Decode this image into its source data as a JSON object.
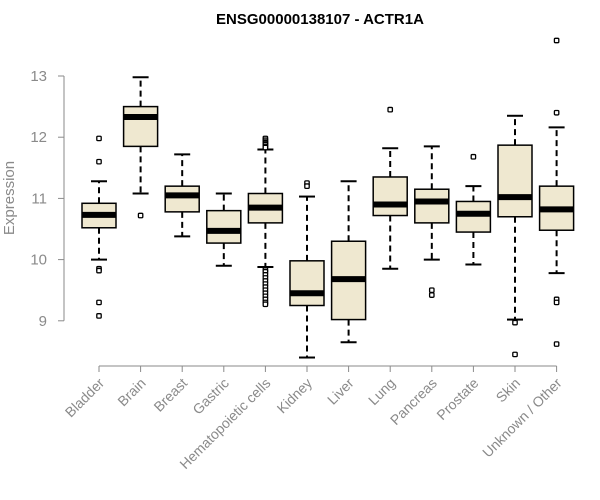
{
  "chart_data": {
    "type": "box",
    "title": "ENSG00000138107 - ACTR1A",
    "xlabel": "",
    "ylabel": "Expression",
    "ylim": [
      8.35,
      13.6
    ],
    "yticks": [
      9,
      10,
      11,
      12,
      13
    ],
    "grid": false,
    "box_fill": "#efe8d0",
    "median_color": "#000000",
    "categories": [
      "Bladder",
      "Brain",
      "Breast",
      "Gastric",
      "Hematopoietic cells",
      "Kidney",
      "Liver",
      "Lung",
      "Pancreas",
      "Prostate",
      "Skin",
      "Unknown / Other"
    ],
    "boxes": [
      {
        "label": "Bladder",
        "whisker_low": 10.0,
        "q1": 10.52,
        "median": 10.73,
        "q3": 10.92,
        "whisker_high": 11.28,
        "outliers": [
          11.98,
          11.6,
          9.85,
          9.82,
          9.3,
          9.08
        ]
      },
      {
        "label": "Brain",
        "whisker_low": 11.08,
        "q1": 11.85,
        "median": 12.33,
        "q3": 12.5,
        "whisker_high": 12.98,
        "outliers": [
          10.72
        ]
      },
      {
        "label": "Breast",
        "whisker_low": 10.38,
        "q1": 10.78,
        "median": 11.05,
        "q3": 11.2,
        "whisker_high": 11.72,
        "outliers": []
      },
      {
        "label": "Gastric",
        "whisker_low": 9.9,
        "q1": 10.27,
        "median": 10.47,
        "q3": 10.8,
        "whisker_high": 11.08,
        "outliers": []
      },
      {
        "label": "Hematopoietic cells",
        "whisker_low": 9.88,
        "q1": 10.6,
        "median": 10.85,
        "q3": 11.08,
        "whisker_high": 11.8,
        "outliers": [
          11.98,
          11.95,
          11.92,
          11.9,
          11.88,
          11.85,
          11.83,
          9.83,
          9.8,
          9.75,
          9.7,
          9.65,
          9.6,
          9.55,
          9.5,
          9.45,
          9.4,
          9.35,
          9.3,
          9.27
        ]
      },
      {
        "label": "Kidney",
        "whisker_low": 8.4,
        "q1": 9.25,
        "median": 9.45,
        "q3": 9.98,
        "whisker_high": 11.03,
        "outliers": [
          11.25,
          11.2
        ]
      },
      {
        "label": "Liver",
        "whisker_low": 8.65,
        "q1": 9.02,
        "median": 9.68,
        "q3": 10.3,
        "whisker_high": 11.28,
        "outliers": []
      },
      {
        "label": "Lung",
        "whisker_low": 9.85,
        "q1": 10.72,
        "median": 10.9,
        "q3": 11.35,
        "whisker_high": 11.82,
        "outliers": [
          12.45
        ]
      },
      {
        "label": "Pancreas",
        "whisker_low": 10.0,
        "q1": 10.6,
        "median": 10.95,
        "q3": 11.15,
        "whisker_high": 11.85,
        "outliers": [
          9.5,
          9.42
        ]
      },
      {
        "label": "Prostate",
        "whisker_low": 9.92,
        "q1": 10.45,
        "median": 10.75,
        "q3": 10.95,
        "whisker_high": 11.2,
        "outliers": [
          11.68
        ]
      },
      {
        "label": "Skin",
        "whisker_low": 9.02,
        "q1": 10.7,
        "median": 11.02,
        "q3": 11.87,
        "whisker_high": 12.35,
        "outliers": [
          8.97,
          8.45
        ]
      },
      {
        "label": "Unknown / Other",
        "whisker_low": 9.78,
        "q1": 10.48,
        "median": 10.82,
        "q3": 11.2,
        "whisker_high": 12.16,
        "outliers": [
          13.58,
          12.4,
          9.35,
          9.3,
          8.62
        ]
      }
    ]
  }
}
